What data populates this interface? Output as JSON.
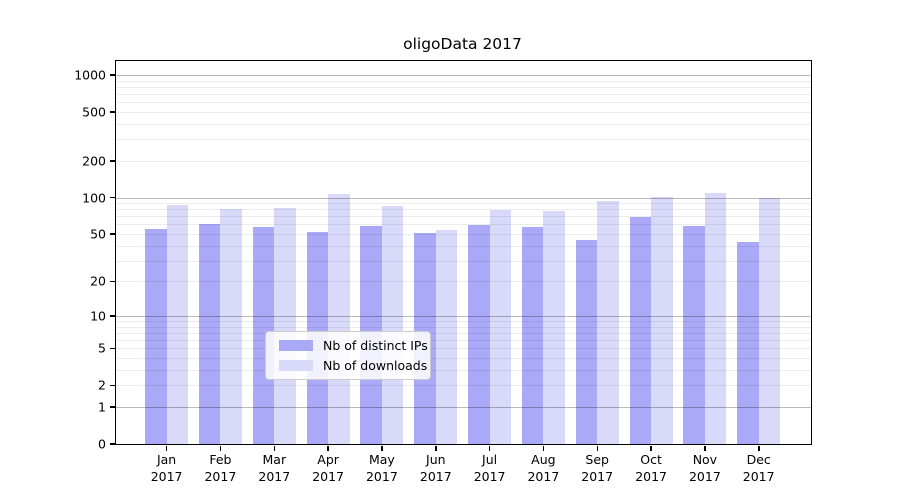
{
  "title": "oligoData 2017",
  "chart_data": {
    "type": "bar",
    "title": "oligoData 2017",
    "months": [
      "Jan",
      "Feb",
      "Mar",
      "Apr",
      "May",
      "Jun",
      "Jul",
      "Aug",
      "Sep",
      "Oct",
      "Nov",
      "Dec"
    ],
    "year": "2017",
    "categories": [
      "Jan 2017",
      "Feb 2017",
      "Mar 2017",
      "Apr 2017",
      "May 2017",
      "Jun 2017",
      "Jul 2017",
      "Aug 2017",
      "Sep 2017",
      "Oct 2017",
      "Nov 2017",
      "Dec 2017"
    ],
    "series": [
      {
        "name": "Nb of distinct IPs",
        "color": "#a9a9f7",
        "values": [
          55,
          60,
          57,
          52,
          58,
          51,
          59,
          57,
          45,
          69,
          58,
          43
        ]
      },
      {
        "name": "Nb of downloads",
        "color": "#d9d9fa",
        "values": [
          87,
          80,
          82,
          107,
          85,
          54,
          79,
          78,
          94,
          101,
          108,
          100
        ]
      }
    ],
    "y_ticks": [
      1000,
      500,
      200,
      100,
      50,
      20,
      10,
      5,
      2,
      1,
      0
    ],
    "y_scale": "log10(value+1)",
    "ylim": [
      0,
      1300
    ],
    "grid": "both",
    "legend_position": "lower center"
  },
  "legend": {
    "items": [
      {
        "label": "Nb of distinct IPs",
        "color": "#a9a9f7"
      },
      {
        "label": "Nb of downloads",
        "color": "#d9d9fa"
      }
    ]
  }
}
